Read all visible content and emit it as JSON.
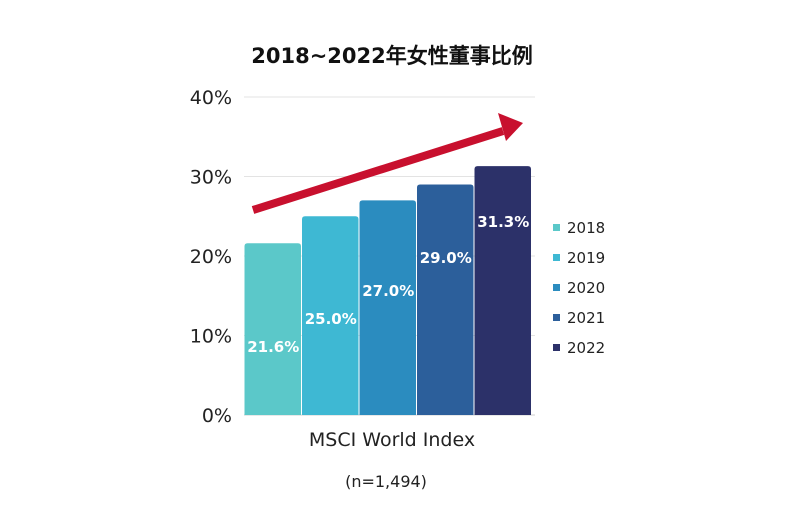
{
  "chart_data": {
    "type": "bar",
    "title": "2018~2022年女性董事比例",
    "categories": [
      "MSCI World Index"
    ],
    "xlabel": "MSCI World Index",
    "note": "(n=1,494)",
    "ylim": [
      0,
      40
    ],
    "yticks": [
      "0%",
      "10%",
      "20%",
      "30%",
      "40%"
    ],
    "grid": true,
    "legend_position": "right",
    "series": [
      {
        "name": "2018",
        "value": 21.6,
        "label": "21.6%",
        "color": "#5bc8c9"
      },
      {
        "name": "2019",
        "value": 25.0,
        "label": "25.0%",
        "color": "#3eb8d3"
      },
      {
        "name": "2020",
        "value": 27.0,
        "label": "27.0%",
        "color": "#2b8cbf"
      },
      {
        "name": "2021",
        "value": 29.0,
        "label": "29.0%",
        "color": "#2c5f9b"
      },
      {
        "name": "2022",
        "value": 31.3,
        "label": "31.3%",
        "color": "#2c3169"
      }
    ],
    "annotation": {
      "type": "trend-arrow",
      "color": "#c8102e"
    }
  }
}
